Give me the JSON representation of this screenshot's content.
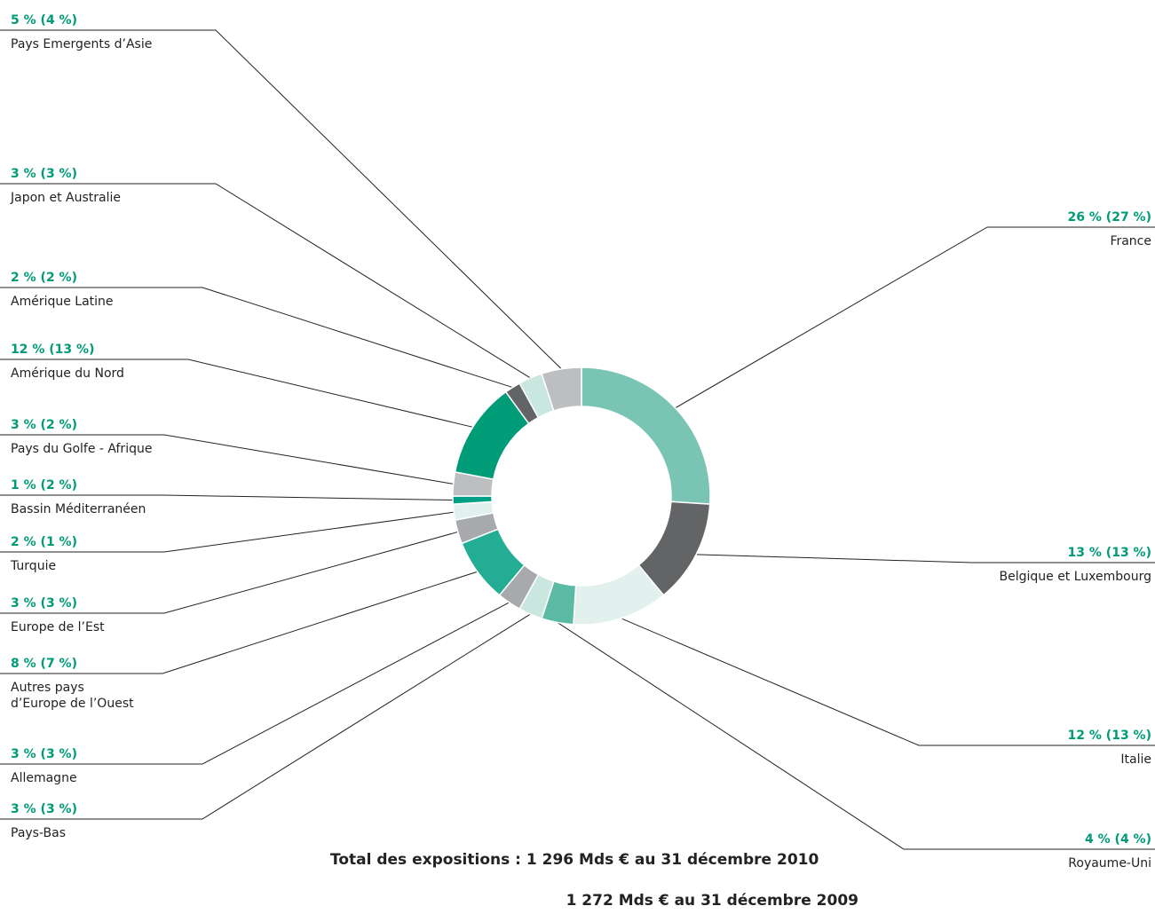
{
  "chart_data": {
    "type": "pie",
    "colors": {
      "pct": "#009b77",
      "line": "#222222"
    },
    "slices": [
      {
        "name": "France",
        "value_2010": "26 %",
        "value_2009": "27 %",
        "v": 26,
        "color": "#7ac4b3"
      },
      {
        "name": "Belgique et Luxembourg",
        "value_2010": "13 %",
        "value_2009": "13 %",
        "v": 13,
        "color": "#636466"
      },
      {
        "name": "Italie",
        "value_2010": "12 %",
        "value_2009": "13 %",
        "v": 12,
        "color": "#e2f1ee"
      },
      {
        "name": "Royaume-Uni",
        "value_2010": "4 %",
        "value_2009": "4 %",
        "v": 4,
        "color": "#5bbaa3"
      },
      {
        "name": "Pays-Bas",
        "value_2010": "3 %",
        "value_2009": "3 %",
        "v": 3,
        "color": "#c9e6df"
      },
      {
        "name": "Allemagne",
        "value_2010": "3 %",
        "value_2009": "3 %",
        "v": 3,
        "color": "#a7a9ac"
      },
      {
        "name": "Autres pays\nd’Europe de l’Ouest",
        "value_2010": "8 %",
        "value_2009": "7 %",
        "v": 8,
        "color": "#23ad94"
      },
      {
        "name": "Europe de l’Est",
        "value_2010": "3 %",
        "value_2009": "3 %",
        "v": 3,
        "color": "#a7a9ac"
      },
      {
        "name": "Turquie",
        "value_2010": "2 %",
        "value_2009": "1 %",
        "v": 2,
        "color": "#e2f1ee"
      },
      {
        "name": "Bassin Méditerranéen",
        "value_2010": "1 %",
        "value_2009": "2 %",
        "v": 1,
        "color": "#00a087"
      },
      {
        "name": "Pays du Golfe - Afrique",
        "value_2010": "3 %",
        "value_2009": "2 %",
        "v": 3,
        "color": "#bcbec0"
      },
      {
        "name": "Amérique du Nord",
        "value_2010": "12 %",
        "value_2009": "13 %",
        "v": 12,
        "color": "#009b77"
      },
      {
        "name": "Amérique Latine",
        "value_2010": "2 %",
        "value_2009": "2 %",
        "v": 2,
        "color": "#636466"
      },
      {
        "name": "Japon et Australie",
        "value_2010": "3 %",
        "value_2009": "3 %",
        "v": 3,
        "color": "#c9e6df"
      },
      {
        "name": "Pays Emergents d’Asie",
        "value_2010": "5 %",
        "value_2009": "4 %",
        "v": 5,
        "color": "#bcbec0"
      }
    ],
    "total_line1": "Total des expositions : 1 296 Mds € au 31 décembre 2010",
    "total_line2": "1 272 Mds € au 31 décembre 2009"
  }
}
